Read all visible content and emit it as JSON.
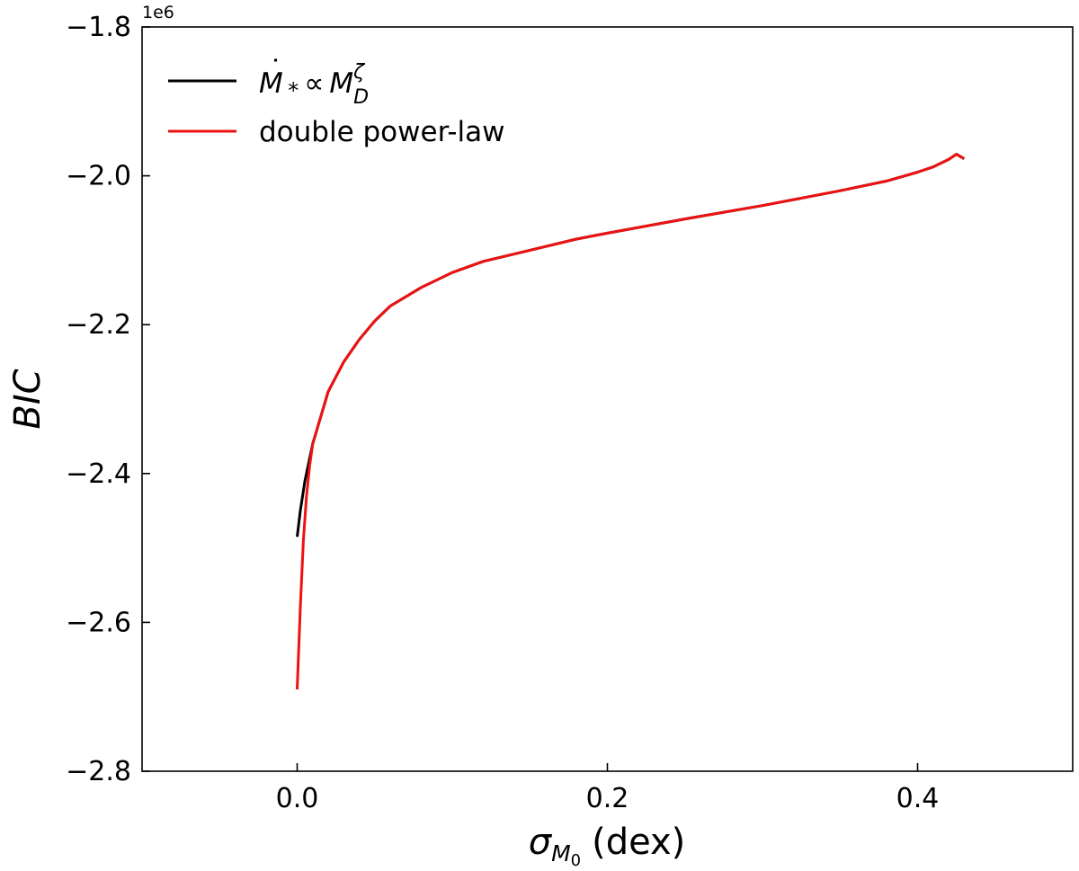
{
  "chart_data": {
    "type": "line",
    "xlabel_symbol": "σ",
    "xlabel_sub": "M",
    "xlabel_subsub": "0",
    "xlabel_unit": "(dex)",
    "ylabel": "BIC",
    "y_offset_label": "1e6",
    "xlim": [
      -0.1,
      0.5
    ],
    "ylim": [
      -2.8,
      -1.8
    ],
    "x_ticks": [
      0.0,
      0.2,
      0.4
    ],
    "x_tick_labels": [
      "0.0",
      "0.2",
      "0.4"
    ],
    "y_ticks": [
      -1.8,
      -2.0,
      -2.2,
      -2.4,
      -2.6,
      -2.8
    ],
    "y_tick_labels": [
      "−1.8",
      "−2.0",
      "−2.2",
      "−2.4",
      "−2.6",
      "−2.8"
    ],
    "grid": false,
    "legend_position": "top-left",
    "legend": [
      {
        "series": 0,
        "base": "M",
        "accent": "˙",
        "sub": "*",
        "rel": "∝",
        "base2": "M",
        "sup2": "ζ",
        "sub2": "D"
      },
      {
        "series": 1,
        "text": "double power-law"
      }
    ],
    "series": [
      {
        "color": "#000000",
        "x": [
          0.0,
          0.002,
          0.005,
          0.01,
          0.015,
          0.02,
          0.03,
          0.04,
          0.05,
          0.06,
          0.08,
          0.1,
          0.12,
          0.15,
          0.18,
          0.2,
          0.25,
          0.3,
          0.35,
          0.38,
          0.4,
          0.41,
          0.42,
          0.425,
          0.43
        ],
        "y": [
          -2.485,
          -2.45,
          -2.41,
          -2.36,
          -2.325,
          -2.29,
          -2.25,
          -2.22,
          -2.195,
          -2.175,
          -2.15,
          -2.13,
          -2.115,
          -2.1,
          -2.085,
          -2.077,
          -2.058,
          -2.04,
          -2.02,
          -2.007,
          -1.995,
          -1.988,
          -1.978,
          -1.971,
          -1.977
        ]
      },
      {
        "color": "#ee1111",
        "x": [
          0.0,
          0.002,
          0.004,
          0.006,
          0.008,
          0.01,
          0.015,
          0.02,
          0.03,
          0.04,
          0.05,
          0.06,
          0.08,
          0.1,
          0.12,
          0.15,
          0.18,
          0.2,
          0.25,
          0.3,
          0.35,
          0.38,
          0.4,
          0.41,
          0.42,
          0.425,
          0.43
        ],
        "y": [
          -2.69,
          -2.58,
          -2.49,
          -2.43,
          -2.39,
          -2.36,
          -2.325,
          -2.29,
          -2.25,
          -2.22,
          -2.195,
          -2.175,
          -2.15,
          -2.13,
          -2.115,
          -2.1,
          -2.085,
          -2.077,
          -2.058,
          -2.04,
          -2.02,
          -2.007,
          -1.995,
          -1.988,
          -1.978,
          -1.971,
          -1.977
        ]
      }
    ]
  }
}
